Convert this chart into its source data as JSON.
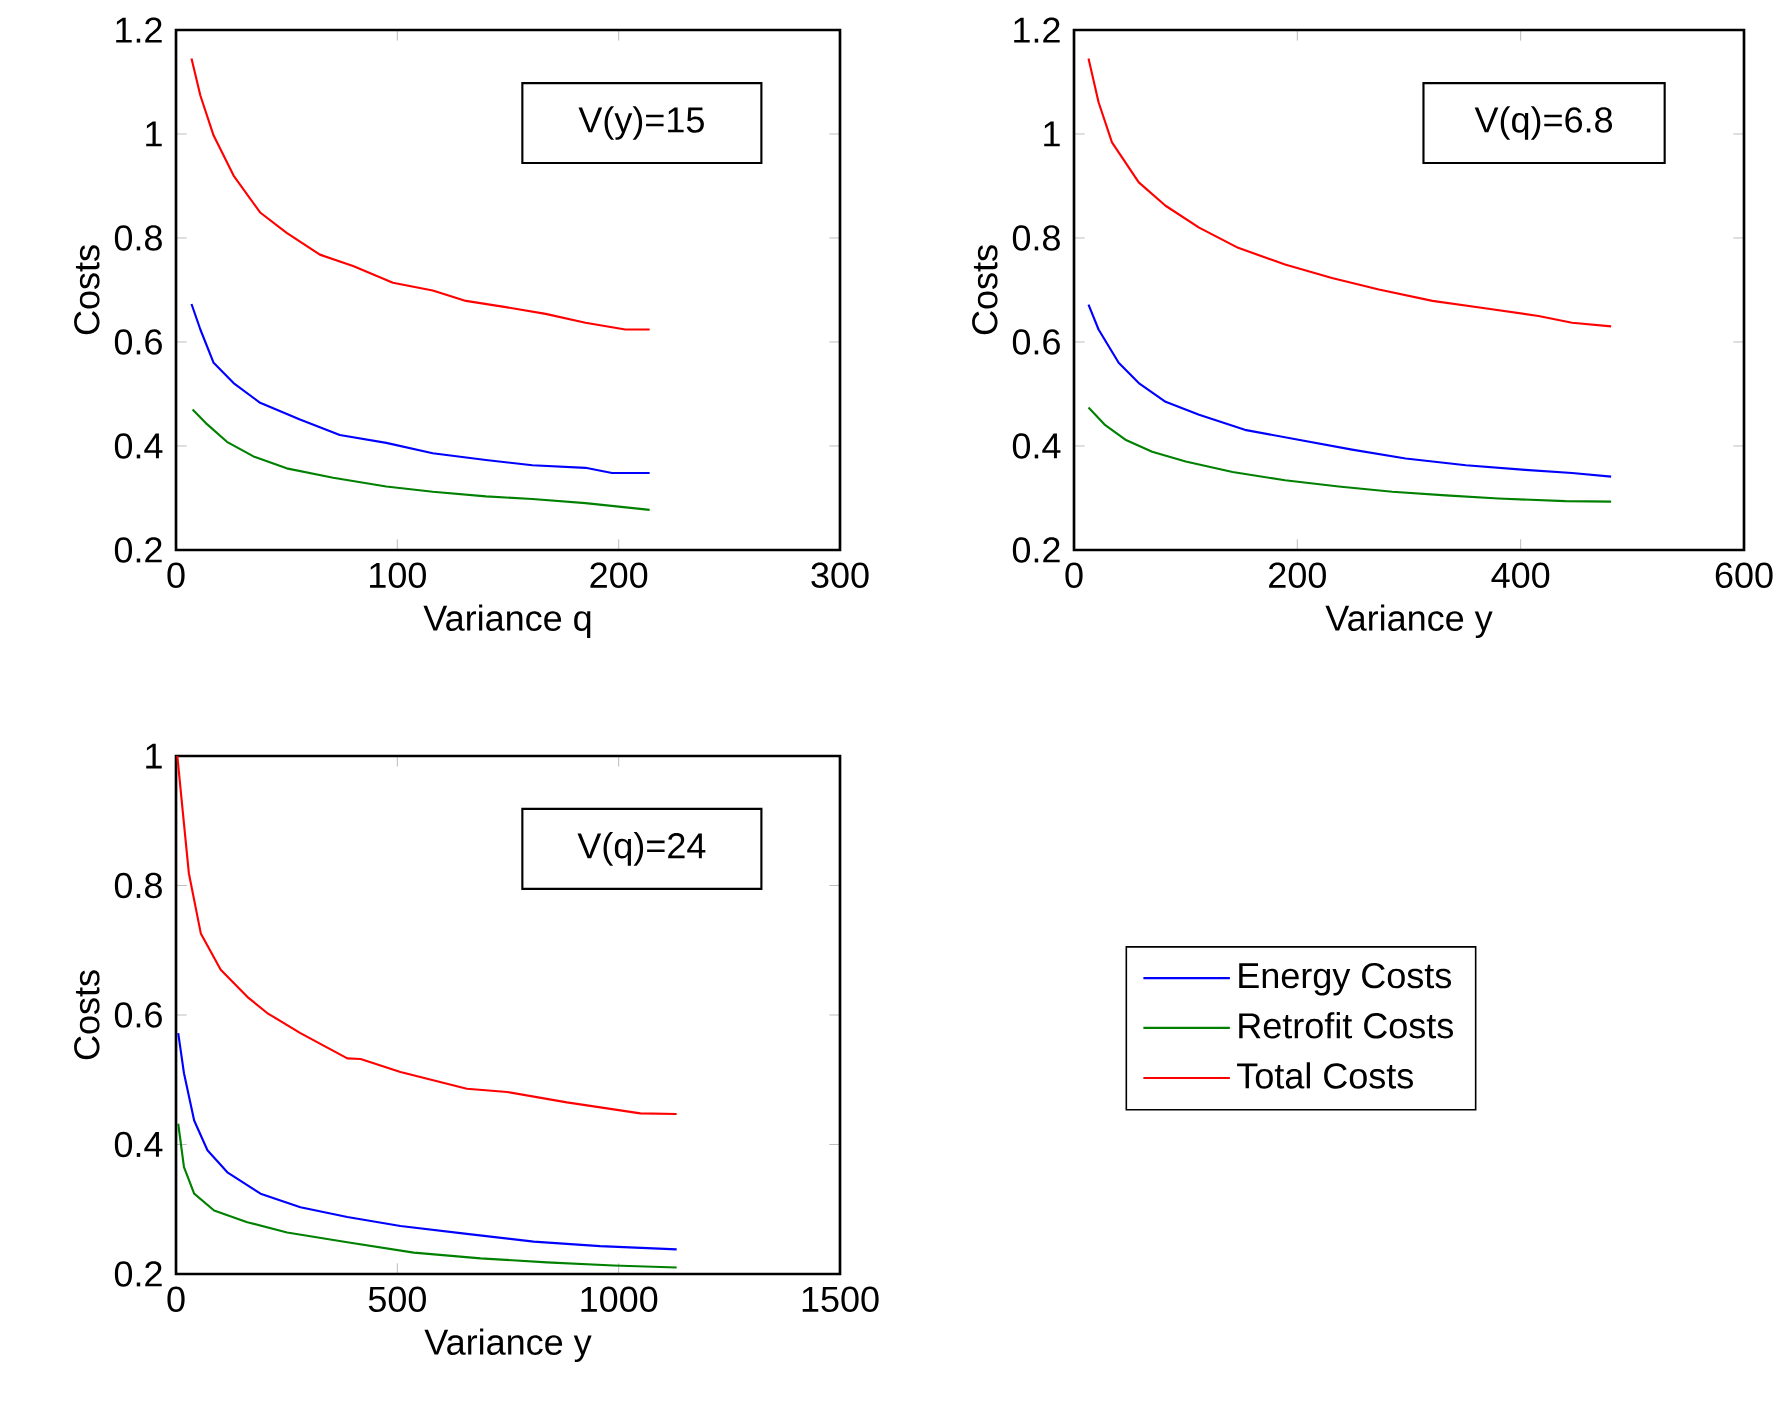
{
  "chart_data": [
    {
      "type": "line",
      "xlabel": "Variance q",
      "ylabel": "Costs",
      "annotations": [
        "V(y)=15"
      ],
      "xlim": [
        0,
        300
      ],
      "ylim": [
        0.2,
        1.2
      ],
      "xticks": [
        0,
        100,
        200,
        300
      ],
      "yticks": [
        0.2,
        0.4,
        0.6,
        0.8,
        1,
        1.2
      ],
      "grid": false,
      "legend": false,
      "marker": "none",
      "line_style": "solid",
      "series": [
        {
          "color": "#0000ff",
          "x": [
            7,
            11,
            17,
            26,
            38,
            56,
            74,
            95,
            116,
            140,
            161,
            185,
            197,
            214
          ],
          "values": [
            0.673,
            0.624,
            0.56,
            0.521,
            0.483,
            0.451,
            0.421,
            0.406,
            0.386,
            0.373,
            0.363,
            0.358,
            0.348,
            0.348
          ]
        },
        {
          "color": "#008000",
          "x": [
            7.5,
            14,
            23,
            35,
            50,
            71,
            95,
            116,
            140,
            161,
            185,
            214
          ],
          "values": [
            0.47,
            0.442,
            0.408,
            0.38,
            0.357,
            0.339,
            0.322,
            0.312,
            0.303,
            0.298,
            0.29,
            0.277
          ]
        },
        {
          "color": "#ff0000",
          "x": [
            7,
            11,
            17,
            26,
            38,
            50,
            65,
            80,
            98,
            116,
            131,
            149,
            167,
            185,
            203,
            214
          ],
          "values": [
            1.145,
            1.074,
            0.997,
            0.92,
            0.849,
            0.81,
            0.768,
            0.746,
            0.714,
            0.699,
            0.679,
            0.667,
            0.654,
            0.637,
            0.624,
            0.624
          ]
        }
      ]
    },
    {
      "type": "line",
      "xlabel": "Variance y",
      "ylabel": "Costs",
      "annotations": [
        "V(q)=6.8"
      ],
      "xlim": [
        0,
        600
      ],
      "ylim": [
        0.2,
        1.2
      ],
      "xticks": [
        0,
        200,
        400,
        600
      ],
      "yticks": [
        0.2,
        0.4,
        0.6,
        0.8,
        1,
        1.2
      ],
      "grid": false,
      "legend": false,
      "marker": "none",
      "line_style": "solid",
      "series": [
        {
          "color": "#0000ff",
          "x": [
            13,
            22,
            40,
            58,
            82,
            112,
            153,
            201,
            249,
            297,
            351,
            404,
            446,
            481
          ],
          "values": [
            0.672,
            0.624,
            0.56,
            0.521,
            0.485,
            0.46,
            0.431,
            0.412,
            0.393,
            0.376,
            0.363,
            0.354,
            0.348,
            0.341
          ]
        },
        {
          "color": "#008000",
          "x": [
            13,
            28,
            46,
            70,
            100,
            142,
            189,
            237,
            285,
            333,
            380,
            440,
            481
          ],
          "values": [
            0.474,
            0.44,
            0.412,
            0.389,
            0.37,
            0.35,
            0.334,
            0.322,
            0.312,
            0.305,
            0.299,
            0.294,
            0.293
          ]
        },
        {
          "color": "#ff0000",
          "x": [
            13,
            22,
            34,
            58,
            82,
            112,
            147,
            189,
            231,
            273,
            321,
            368,
            416,
            446,
            481
          ],
          "values": [
            1.145,
            1.061,
            0.984,
            0.907,
            0.862,
            0.82,
            0.781,
            0.749,
            0.723,
            0.701,
            0.679,
            0.665,
            0.65,
            0.637,
            0.63
          ]
        }
      ]
    },
    {
      "type": "line",
      "xlabel": "Variance y",
      "ylabel": "Costs",
      "annotations": [
        "V(q)=24"
      ],
      "xlim": [
        0,
        1500
      ],
      "ylim": [
        0.2,
        1
      ],
      "xticks": [
        0,
        500,
        1000,
        1500
      ],
      "yticks": [
        0.2,
        0.4,
        0.6,
        0.8,
        1
      ],
      "grid": false,
      "legend": "right",
      "marker": "none",
      "line_style": "solid",
      "series": [
        {
          "name": "Energy Costs",
          "color": "#0000ff",
          "x": [
            5,
            18,
            41,
            71,
            116,
            191,
            281,
            387,
            507,
            657,
            808,
            958,
            1131
          ],
          "values": [
            0.572,
            0.51,
            0.437,
            0.391,
            0.357,
            0.324,
            0.303,
            0.288,
            0.274,
            0.262,
            0.25,
            0.243,
            0.238
          ]
        },
        {
          "name": "Retrofit Costs",
          "color": "#008000",
          "x": [
            5,
            18,
            41,
            86,
            161,
            251,
            387,
            537,
            688,
            838,
            988,
            1131
          ],
          "values": [
            0.432,
            0.365,
            0.324,
            0.298,
            0.28,
            0.264,
            0.249,
            0.233,
            0.224,
            0.218,
            0.213,
            0.21
          ]
        },
        {
          "name": "Total Costs",
          "color": "#ff0000",
          "x": [
            3,
            14,
            29,
            56,
            101,
            161,
            206,
            281,
            387,
            417,
            507,
            657,
            748,
            883,
            1049,
            1131
          ],
          "values": [
            1.0,
            0.923,
            0.819,
            0.726,
            0.67,
            0.628,
            0.603,
            0.572,
            0.533,
            0.532,
            0.512,
            0.486,
            0.481,
            0.465,
            0.448,
            0.447
          ]
        }
      ]
    }
  ]
}
